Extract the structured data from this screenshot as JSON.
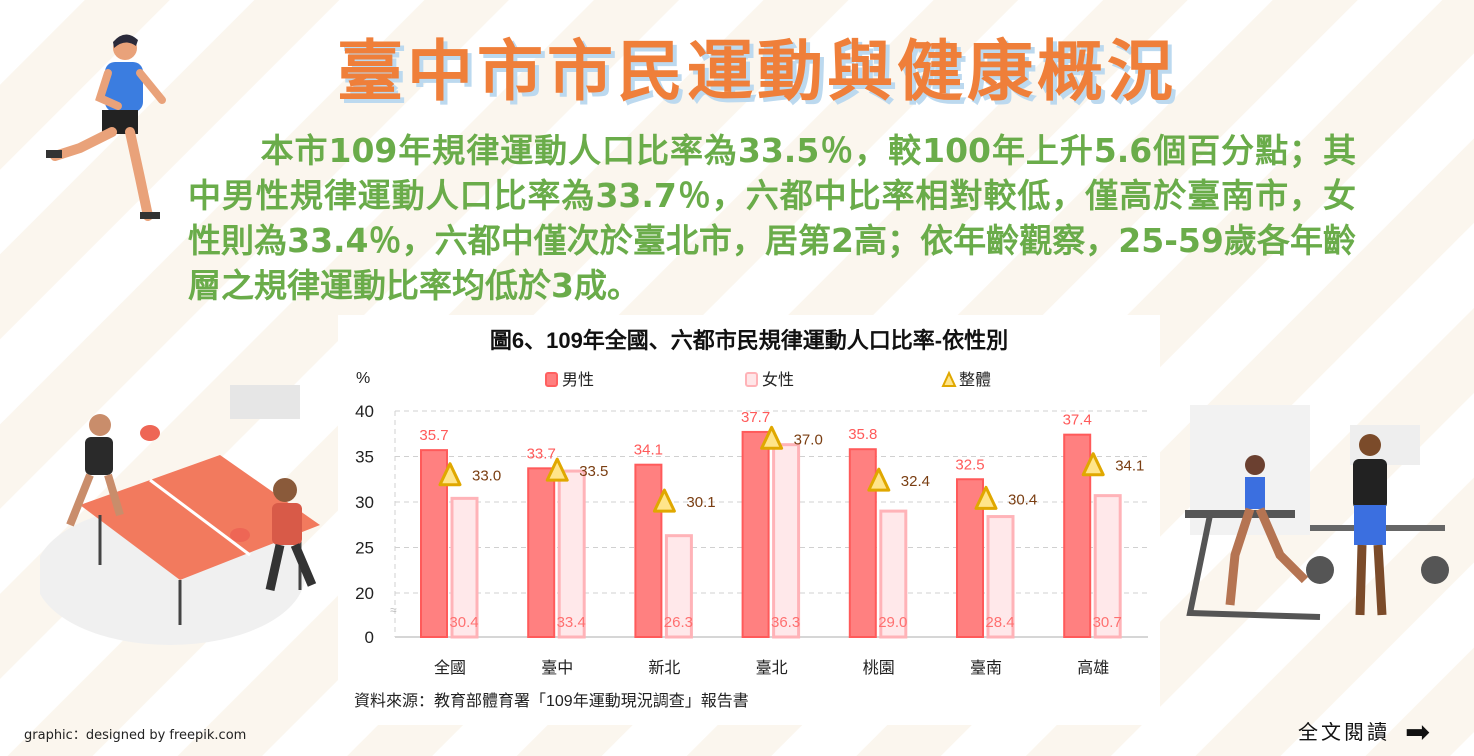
{
  "header": {
    "title": "臺中市市民運動與健康概況"
  },
  "summary": "本市109年規律運動人口比率為33.5％，較100年上升5.6個百分點；其中男性規律運動人口比率為33.7％，六都中比率相對較低，僅高於臺南市，女性則為33.4％，六都中僅次於臺北市，居第2高；依年齡觀察，25-59歲各年齡層之規律運動比率均低於3成。",
  "chart_data": {
    "type": "bar",
    "title": "圖6、109年全國、六都市民規律運動人口比率-依性別",
    "ylabel": "%",
    "yticks": [
      "0",
      "20",
      "25",
      "30",
      "35",
      "40"
    ],
    "ylim": [
      0,
      40
    ],
    "axis_break": [
      0,
      20
    ],
    "grid": true,
    "legend_position": "top",
    "categories": [
      "全國",
      "臺中",
      "新北",
      "臺北",
      "桃園",
      "臺南",
      "高雄"
    ],
    "series": [
      {
        "name": "男性",
        "type": "bar",
        "values": [
          35.7,
          33.7,
          34.1,
          37.7,
          35.8,
          32.5,
          37.4
        ],
        "labels": [
          "35.7",
          "33.7",
          "34.1",
          "37.7",
          "35.8",
          "32.5",
          "37.4"
        ],
        "color": "#ff7f7f"
      },
      {
        "name": "女性",
        "type": "bar",
        "values": [
          30.4,
          33.4,
          26.3,
          36.3,
          29.0,
          28.4,
          30.7
        ],
        "labels": [
          "30.4",
          "33.4",
          "26.3",
          "36.3",
          "29.0",
          "28.4",
          "30.7"
        ],
        "color": "#ffe6e8"
      },
      {
        "name": "整體",
        "type": "marker-triangle",
        "values": [
          33.0,
          33.5,
          30.1,
          37.0,
          32.4,
          30.4,
          34.1
        ],
        "labels": [
          "33.0",
          "33.5",
          "30.1",
          "37.0",
          "32.4",
          "30.4",
          "34.1"
        ],
        "color": "#e0a800"
      }
    ],
    "source": "資料來源：教育部體育署「109年運動現況調查」報告書"
  },
  "footer": {
    "credit": "graphic：designed by freepik.com",
    "read_more": "全文閱讀",
    "arrow_icon": "right-arrow-icon"
  }
}
